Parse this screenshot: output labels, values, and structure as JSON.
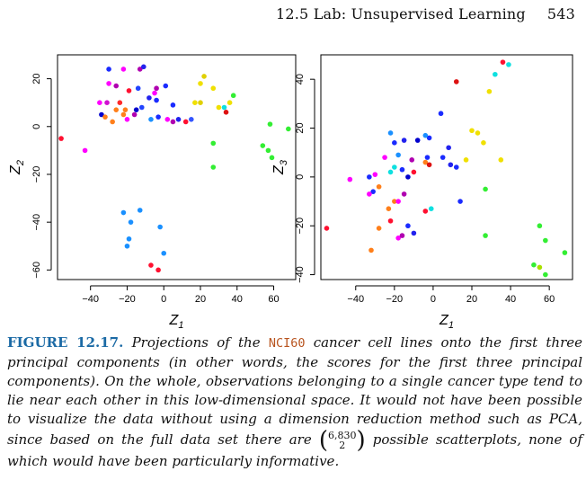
{
  "header": {
    "section": "12.5 Lab: Unsupervised Learning",
    "page_number": "543"
  },
  "chart_data": [
    {
      "type": "scatter",
      "xlabel": "Z1",
      "ylabel": "Z2",
      "xlim": [
        -58,
        72
      ],
      "ylim": [
        -64,
        30
      ],
      "xticks": [
        -40,
        -20,
        0,
        20,
        40,
        60
      ],
      "yticks": [
        -60,
        -40,
        -20,
        0,
        20
      ],
      "points": [
        {
          "x": -30,
          "y": 24,
          "c": "#1a2bff"
        },
        {
          "x": -22,
          "y": 24,
          "c": "#ff00ff"
        },
        {
          "x": -13,
          "y": 24,
          "c": "#b000b0"
        },
        {
          "x": -11,
          "y": 25,
          "c": "#2222ee"
        },
        {
          "x": -30,
          "y": 18,
          "c": "#ff00ff"
        },
        {
          "x": -26,
          "y": 17,
          "c": "#b000b0"
        },
        {
          "x": -19,
          "y": 15,
          "c": "#ff1030"
        },
        {
          "x": -14,
          "y": 16,
          "c": "#2244ff"
        },
        {
          "x": -4,
          "y": 16,
          "c": "#b000b0"
        },
        {
          "x": 1,
          "y": 17,
          "c": "#1a2bff"
        },
        {
          "x": -35,
          "y": 10,
          "c": "#ff00ff"
        },
        {
          "x": -31,
          "y": 10,
          "c": "#d010d0"
        },
        {
          "x": -24,
          "y": 10,
          "c": "#ff2a2a"
        },
        {
          "x": -5,
          "y": 14,
          "c": "#ff00ff"
        },
        {
          "x": -8,
          "y": 12,
          "c": "#2222ee"
        },
        {
          "x": -4,
          "y": 11,
          "c": "#1a2bff"
        },
        {
          "x": -26,
          "y": 7,
          "c": "#ff7f1a"
        },
        {
          "x": -21,
          "y": 7,
          "c": "#ff7f1a"
        },
        {
          "x": -15,
          "y": 7,
          "c": "#0000cd"
        },
        {
          "x": -12,
          "y": 8,
          "c": "#2244ff"
        },
        {
          "x": 5,
          "y": 9,
          "c": "#1a2bff"
        },
        {
          "x": -34,
          "y": 5,
          "c": "#0000cd"
        },
        {
          "x": -32,
          "y": 4,
          "c": "#ff7f1a"
        },
        {
          "x": -28,
          "y": 2,
          "c": "#ff7f1a"
        },
        {
          "x": -22,
          "y": 5,
          "c": "#ff7f1a"
        },
        {
          "x": -20,
          "y": 3,
          "c": "#ff00ff"
        },
        {
          "x": -16,
          "y": 5,
          "c": "#b000b0"
        },
        {
          "x": -7,
          "y": 3,
          "c": "#1a90ff"
        },
        {
          "x": -3,
          "y": 4,
          "c": "#1a2bff"
        },
        {
          "x": 2,
          "y": 3,
          "c": "#ff00ff"
        },
        {
          "x": 5,
          "y": 2,
          "c": "#b000b0"
        },
        {
          "x": 8,
          "y": 3,
          "c": "#2222ee"
        },
        {
          "x": 12,
          "y": 2,
          "c": "#ff1030"
        },
        {
          "x": 15,
          "y": 3,
          "c": "#3355ff"
        },
        {
          "x": 22,
          "y": 21,
          "c": "#e0d000"
        },
        {
          "x": 20,
          "y": 18,
          "c": "#f0e000"
        },
        {
          "x": 27,
          "y": 16,
          "c": "#f0e000"
        },
        {
          "x": 38,
          "y": 13,
          "c": "#33ee33"
        },
        {
          "x": 36,
          "y": 10,
          "c": "#f0e000"
        },
        {
          "x": 20,
          "y": 10,
          "c": "#e0d000"
        },
        {
          "x": 17,
          "y": 10,
          "c": "#f0e000"
        },
        {
          "x": 30,
          "y": 8,
          "c": "#f0e000"
        },
        {
          "x": 33,
          "y": 8,
          "c": "#0ee0e0"
        },
        {
          "x": 34,
          "y": 6,
          "c": "#dd1111"
        },
        {
          "x": -56,
          "y": -5,
          "c": "#ff1030"
        },
        {
          "x": -43,
          "y": -10,
          "c": "#ff00ff"
        },
        {
          "x": 27,
          "y": -7,
          "c": "#33ee33"
        },
        {
          "x": 54,
          "y": -8,
          "c": "#33ee33"
        },
        {
          "x": 58,
          "y": 1,
          "c": "#33ee33"
        },
        {
          "x": 68,
          "y": -1,
          "c": "#33ee33"
        },
        {
          "x": 57,
          "y": -10,
          "c": "#33ee33"
        },
        {
          "x": 59,
          "y": -13,
          "c": "#33ee33"
        },
        {
          "x": 27,
          "y": -17,
          "c": "#33ee33"
        },
        {
          "x": -13,
          "y": -35,
          "c": "#1a90ff"
        },
        {
          "x": -22,
          "y": -36,
          "c": "#1a90ff"
        },
        {
          "x": -18,
          "y": -40,
          "c": "#1a90ff"
        },
        {
          "x": -2,
          "y": -42,
          "c": "#1a90ff"
        },
        {
          "x": -19,
          "y": -47,
          "c": "#1a90ff"
        },
        {
          "x": -20,
          "y": -50,
          "c": "#1a90ff"
        },
        {
          "x": 0,
          "y": -53,
          "c": "#1a90ff"
        },
        {
          "x": -7,
          "y": -58,
          "c": "#ff1030"
        },
        {
          "x": -3,
          "y": -60,
          "c": "#ff1030"
        }
      ]
    },
    {
      "type": "scatter",
      "xlabel": "Z1",
      "ylabel": "Z3",
      "xlim": [
        -58,
        72
      ],
      "ylim": [
        -42,
        50
      ],
      "xticks": [
        -40,
        -20,
        0,
        20,
        40,
        60
      ],
      "yticks": [
        -40,
        -20,
        0,
        20,
        40
      ],
      "points": [
        {
          "x": 36,
          "y": 47,
          "c": "#ff1030"
        },
        {
          "x": 39,
          "y": 46,
          "c": "#0ee0e0"
        },
        {
          "x": 32,
          "y": 42,
          "c": "#0ee0e0"
        },
        {
          "x": 12,
          "y": 39,
          "c": "#dd1111"
        },
        {
          "x": 29,
          "y": 35,
          "c": "#f0e000"
        },
        {
          "x": 4,
          "y": 26,
          "c": "#1a2bff"
        },
        {
          "x": 20,
          "y": 19,
          "c": "#f0e000"
        },
        {
          "x": 23,
          "y": 18,
          "c": "#f0e000"
        },
        {
          "x": 26,
          "y": 14,
          "c": "#f0e000"
        },
        {
          "x": -22,
          "y": 18,
          "c": "#1a90ff"
        },
        {
          "x": -15,
          "y": 15,
          "c": "#2222ee"
        },
        {
          "x": -20,
          "y": 14,
          "c": "#1a2bff"
        },
        {
          "x": -2,
          "y": 16,
          "c": "#1a2bff"
        },
        {
          "x": -4,
          "y": 17,
          "c": "#1a90ff"
        },
        {
          "x": -8,
          "y": 15,
          "c": "#0000cd"
        },
        {
          "x": 8,
          "y": 12,
          "c": "#2222ee"
        },
        {
          "x": -25,
          "y": 8,
          "c": "#ff00ff"
        },
        {
          "x": -18,
          "y": 9,
          "c": "#1a90ff"
        },
        {
          "x": -11,
          "y": 7,
          "c": "#b000b0"
        },
        {
          "x": -3,
          "y": 8,
          "c": "#1a2bff"
        },
        {
          "x": 5,
          "y": 8,
          "c": "#1a2bff"
        },
        {
          "x": -20,
          "y": 4,
          "c": "#0ee0e0"
        },
        {
          "x": -16,
          "y": 3,
          "c": "#1a2bff"
        },
        {
          "x": -4,
          "y": 6,
          "c": "#ff7f1a"
        },
        {
          "x": -2,
          "y": 5,
          "c": "#dd1111"
        },
        {
          "x": 9,
          "y": 5,
          "c": "#2222ee"
        },
        {
          "x": 12,
          "y": 4,
          "c": "#1a2bff"
        },
        {
          "x": 17,
          "y": 7,
          "c": "#f0e000"
        },
        {
          "x": -30,
          "y": 1,
          "c": "#ff00ff"
        },
        {
          "x": -22,
          "y": 2,
          "c": "#0ee0e0"
        },
        {
          "x": -10,
          "y": 2,
          "c": "#ff1030"
        },
        {
          "x": -13,
          "y": 0,
          "c": "#0000cd"
        },
        {
          "x": -33,
          "y": 0,
          "c": "#1a2bff"
        },
        {
          "x": -43,
          "y": -1,
          "c": "#ff00ff"
        },
        {
          "x": -28,
          "y": -4,
          "c": "#ff7f1a"
        },
        {
          "x": 14,
          "y": -10,
          "c": "#1a2bff"
        },
        {
          "x": 27,
          "y": -5,
          "c": "#33ee33"
        },
        {
          "x": 35,
          "y": 7,
          "c": "#f0e000"
        },
        {
          "x": -31,
          "y": -6,
          "c": "#1a2bff"
        },
        {
          "x": -33,
          "y": -7,
          "c": "#ff00ff"
        },
        {
          "x": -20,
          "y": -10,
          "c": "#ff7f1a"
        },
        {
          "x": -18,
          "y": -10,
          "c": "#ff00ff"
        },
        {
          "x": -15,
          "y": -7,
          "c": "#b000b0"
        },
        {
          "x": -1,
          "y": -13,
          "c": "#0ee0e0"
        },
        {
          "x": -4,
          "y": -14,
          "c": "#ff1030"
        },
        {
          "x": -23,
          "y": -13,
          "c": "#ff7f1a"
        },
        {
          "x": -28,
          "y": -21,
          "c": "#ff7f1a"
        },
        {
          "x": -22,
          "y": -18,
          "c": "#ff1030"
        },
        {
          "x": -13,
          "y": -20,
          "c": "#1a2bff"
        },
        {
          "x": -10,
          "y": -23,
          "c": "#2222ee"
        },
        {
          "x": -18,
          "y": -25,
          "c": "#ff00ff"
        },
        {
          "x": -16,
          "y": -24,
          "c": "#b000b0"
        },
        {
          "x": -55,
          "y": -21,
          "c": "#ff1030"
        },
        {
          "x": -32,
          "y": -30,
          "c": "#ff7f1a"
        },
        {
          "x": 27,
          "y": -24,
          "c": "#33ee33"
        },
        {
          "x": 55,
          "y": -20,
          "c": "#33ee33"
        },
        {
          "x": 58,
          "y": -26,
          "c": "#33ee33"
        },
        {
          "x": 68,
          "y": -31,
          "c": "#33ee33"
        },
        {
          "x": 52,
          "y": -36,
          "c": "#33ee33"
        },
        {
          "x": 55,
          "y": -37,
          "c": "#a8e000"
        },
        {
          "x": 58,
          "y": -40,
          "c": "#33ee33"
        }
      ]
    }
  ],
  "caption": {
    "label": "FIGURE 12.17.",
    "text_before_code": "Projections of the",
    "code": "NCI60",
    "text_after_code": "cancer cell lines onto the first three principal components (in other words, the scores for the first three principal components). On the whole, observations belonging to a single cancer type tend to lie near each other in this low-dimensional space. It would not have been possible to visualize the data without using a dimension reduction method such as PCA, since based on the full data set there are",
    "binom_top": "6,830",
    "binom_bottom": "2",
    "text_end": "possible scatterplots, none of which would have been particularly informative."
  }
}
